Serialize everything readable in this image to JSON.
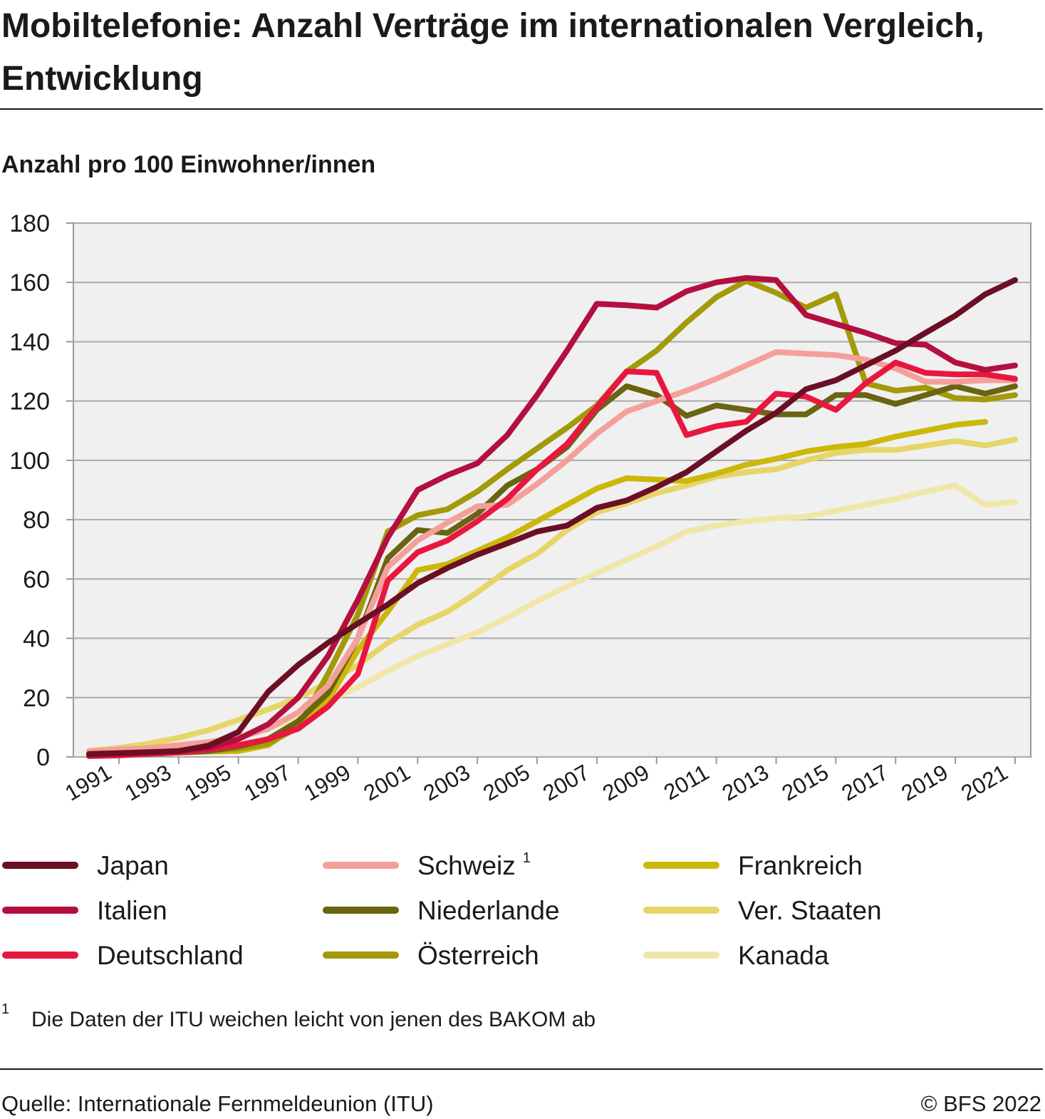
{
  "chart_data": {
    "type": "line",
    "title": "Mobiltelefonie: Anzahl Verträge im internationalen Vergleich, Entwicklung",
    "subtitle": "Anzahl pro 100 Einwohner/innen",
    "x": [
      1990,
      1991,
      1992,
      1993,
      1994,
      1995,
      1996,
      1997,
      1998,
      1999,
      2000,
      2001,
      2002,
      2003,
      2004,
      2005,
      2006,
      2007,
      2008,
      2009,
      2010,
      2011,
      2012,
      2013,
      2014,
      2015,
      2016,
      2017,
      2018,
      2019,
      2020,
      2021
    ],
    "xlim": [
      1990,
      2021
    ],
    "xticks": [
      1991,
      1993,
      1995,
      1997,
      1999,
      2001,
      2003,
      2005,
      2007,
      2009,
      2011,
      2013,
      2015,
      2017,
      2019,
      2021
    ],
    "ylim": [
      0,
      180
    ],
    "yticks": [
      0,
      20,
      40,
      60,
      80,
      100,
      120,
      140,
      160,
      180
    ],
    "grid": true,
    "series": [
      {
        "name": "Japan",
        "color": "#6b0f24",
        "values": [
          1,
          1.3,
          1.6,
          2,
          3.8,
          8.4,
          22,
          31,
          38.5,
          45,
          51.4,
          58.6,
          63.7,
          68.2,
          72,
          76,
          78,
          84,
          86.5,
          91,
          96,
          103,
          110,
          116,
          124,
          127,
          132,
          137,
          143,
          148.8,
          156,
          160.8
        ]
      },
      {
        "name": "Italien",
        "color": "#b3103f",
        "values": [
          0.5,
          1,
          1.5,
          2,
          3,
          6,
          11,
          20,
          34,
          53,
          74,
          90,
          95,
          99,
          108.5,
          122,
          137,
          152.8,
          152.3,
          151.5,
          157,
          160,
          161.5,
          160.8,
          149,
          146,
          143,
          139.5,
          139,
          133,
          130.5,
          132
        ]
      },
      {
        "name": "Deutschland",
        "color": "#e8173f",
        "values": [
          0.3,
          0.5,
          1,
          1.5,
          2.5,
          4,
          6,
          9.5,
          17,
          28,
          59.5,
          69,
          73,
          79.5,
          87,
          97,
          105.5,
          118,
          130,
          129.5,
          108.5,
          111.5,
          113,
          122.5,
          121.5,
          117,
          126,
          133,
          129.5,
          129,
          129,
          127.5
        ]
      },
      {
        "name": "Schweiz",
        "note": "1",
        "color": "#f4a09a",
        "values": [
          2,
          2.5,
          3,
          4,
          5,
          6.5,
          9.5,
          15,
          24,
          40,
          64,
          73,
          79,
          84.5,
          85,
          92,
          100,
          109,
          116.5,
          120,
          123.5,
          127.5,
          132,
          136.5,
          136,
          135.5,
          134,
          131,
          126.5,
          126.5,
          127,
          127
        ]
      },
      {
        "name": "Niederlande",
        "color": "#6b6410",
        "values": [
          0.5,
          0.8,
          1,
          1.5,
          2,
          3.5,
          6,
          12,
          21.5,
          40,
          67,
          76.5,
          75.5,
          82,
          91.5,
          97,
          104.5,
          117,
          125,
          122,
          115,
          118.5,
          117,
          115.5,
          115.5,
          122,
          122,
          119,
          122,
          125,
          122.5,
          125
        ]
      },
      {
        "name": "Österreich",
        "color": "#a39a0a",
        "values": [
          0.5,
          0.8,
          1,
          1.5,
          2,
          2.8,
          4.5,
          10,
          28,
          48,
          76,
          81.5,
          83.5,
          89.5,
          97,
          104,
          111,
          118.5,
          130,
          137,
          146.5,
          155,
          160.5,
          156.5,
          151.5,
          156,
          126,
          123.5,
          124.5,
          121,
          120.5,
          122
        ]
      },
      {
        "name": "Frankreich",
        "color": "#ccb80a",
        "values": [
          0.5,
          0.7,
          1,
          1.5,
          1.8,
          2,
          4,
          11,
          19,
          36,
          49,
          63,
          65,
          69.5,
          74,
          79.5,
          85,
          90.5,
          94,
          93.5,
          93,
          95.5,
          98.5,
          100.5,
          103,
          104.5,
          105.5,
          108,
          110,
          112,
          113,
          null
        ]
      },
      {
        "name": "Ver. Staaten",
        "color": "#e6d66a",
        "values": [
          2,
          3,
          4.5,
          6.5,
          9,
          12.5,
          16,
          20,
          25,
          31,
          38.5,
          44.5,
          49,
          55.5,
          63,
          68.5,
          76.5,
          82.5,
          85.5,
          89,
          91.5,
          94.5,
          96,
          97,
          100,
          102.5,
          103.5,
          103.5,
          105,
          106.5,
          105,
          107
        ]
      },
      {
        "name": "Kanada",
        "color": "#f0e6a8",
        "values": [
          1.5,
          2,
          2.5,
          3.5,
          5,
          7,
          10,
          13,
          19,
          23.5,
          29,
          34,
          38,
          42,
          47,
          52.5,
          57.5,
          62,
          66.5,
          71,
          76,
          78,
          79.5,
          80.5,
          81,
          83,
          85,
          87,
          89.5,
          91.5,
          85,
          86
        ]
      }
    ],
    "footnote": {
      "mark": "1",
      "text": "Die Daten der ITU weichen leicht von jenen des BAKOM ab"
    },
    "source": "Quelle: Internationale Fernmeldeunion (ITU)",
    "copyright": "© BFS 2022"
  }
}
